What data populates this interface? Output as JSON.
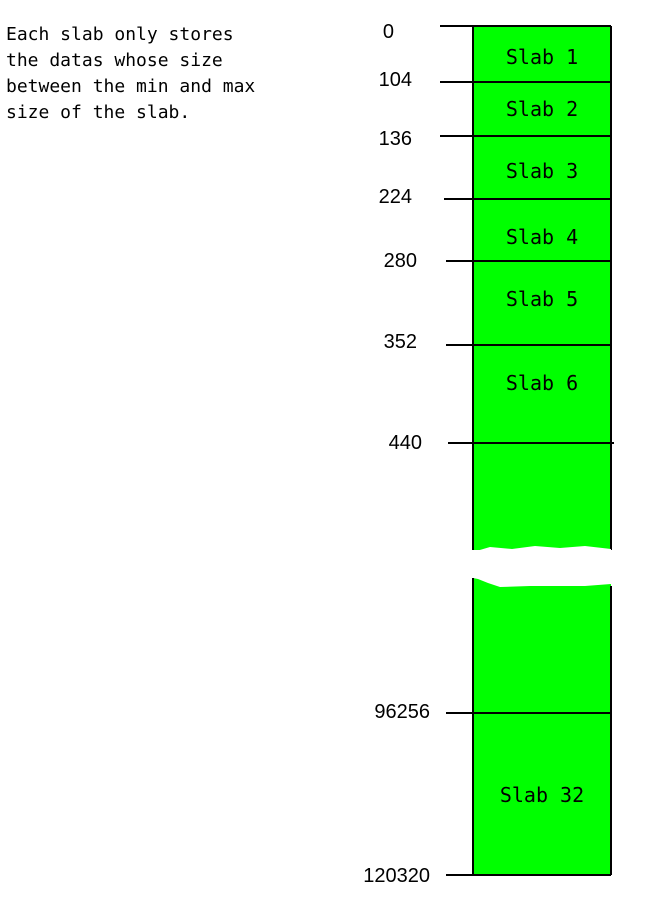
{
  "note": {
    "lines": [
      "Each slab only stores",
      "the datas whose size",
      "between the min and max",
      "size of the slab."
    ]
  },
  "colors": {
    "slab_fill": "#00ff00",
    "line": "#000000",
    "background": "#ffffff"
  },
  "boundaries": {
    "b0": "0",
    "b104": "104",
    "b136": "136",
    "b224": "224",
    "b280": "280",
    "b352": "352",
    "b440": "440",
    "b96256": "96256",
    "b120320": "120320"
  },
  "slabs": {
    "s1": "Slab 1",
    "s2": "Slab 2",
    "s3": "Slab 3",
    "s4": "Slab 4",
    "s5": "Slab 5",
    "s6": "Slab 6",
    "s32": "Slab 32"
  }
}
